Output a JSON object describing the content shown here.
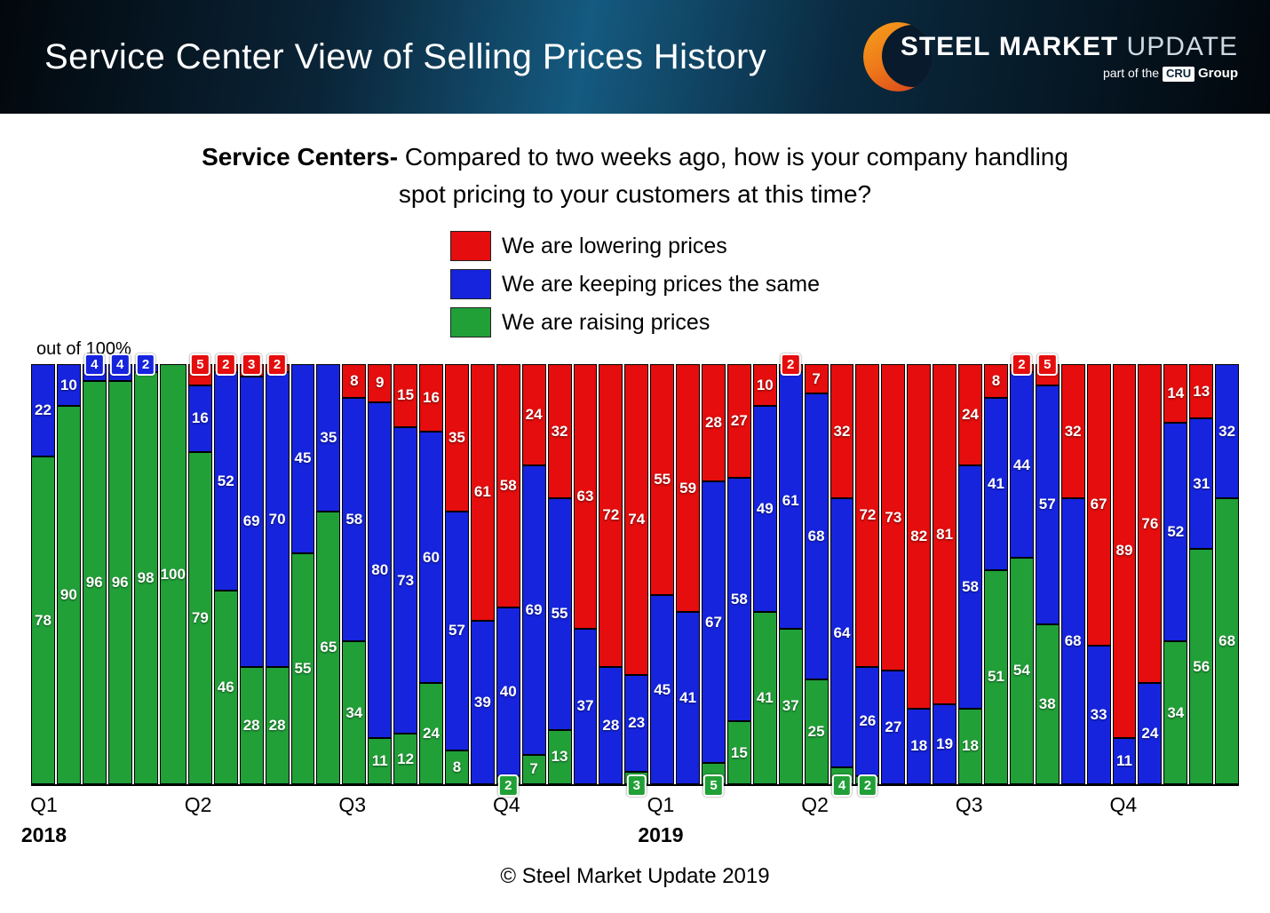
{
  "header": {
    "title": "Service Center View of Selling Prices History",
    "logo": {
      "steel": "STEEL",
      "market": "MARKET",
      "update": "UPDATE",
      "part_of": "part of the",
      "cru": "CRU",
      "group": "Group"
    }
  },
  "question": {
    "bold": "Service Centers-",
    "rest": " Compared to two weeks ago, how is your company handling spot pricing to your customers at this time?"
  },
  "legend": [
    {
      "key": "lowering",
      "label": "We are lowering prices",
      "color": "#e50d0d"
    },
    {
      "key": "keeping",
      "label": "We are keeping prices the same",
      "color": "#1624de"
    },
    {
      "key": "raising",
      "label": "We are raising prices",
      "color": "#21a038"
    }
  ],
  "axis_note": "out of 100%",
  "footer": "© Steel Market Update 2019",
  "chart_data": {
    "type": "bar",
    "stacked": true,
    "title": "Service Centers- Compared to two weeks ago, how is your company handling spot pricing to your customers at this time?",
    "unit": "percent of respondents, out of 100%",
    "total_per_bar": 100,
    "series_names": {
      "lowering": "We are lowering prices",
      "keeping": "We are keeping prices the same",
      "raising": "We are raising prices"
    },
    "colors": {
      "lowering": "#e50d0d",
      "keeping": "#1624de",
      "raising": "#21a038"
    },
    "label_min_inside": 6,
    "bars": [
      {
        "lowering": 0,
        "keeping": 22,
        "raising": 78
      },
      {
        "lowering": 0,
        "keeping": 10,
        "raising": 90
      },
      {
        "lowering": 0,
        "keeping": 4,
        "raising": 96
      },
      {
        "lowering": 0,
        "keeping": 4,
        "raising": 96
      },
      {
        "lowering": 0,
        "keeping": 2,
        "raising": 98
      },
      {
        "lowering": 0,
        "keeping": 0,
        "raising": 100
      },
      {
        "lowering": 5,
        "keeping": 16,
        "raising": 79
      },
      {
        "lowering": 2,
        "keeping": 52,
        "raising": 46
      },
      {
        "lowering": 3,
        "keeping": 69,
        "raising": 28
      },
      {
        "lowering": 2,
        "keeping": 70,
        "raising": 28
      },
      {
        "lowering": 0,
        "keeping": 45,
        "raising": 55
      },
      {
        "lowering": 0,
        "keeping": 35,
        "raising": 65
      },
      {
        "lowering": 8,
        "keeping": 58,
        "raising": 34
      },
      {
        "lowering": 9,
        "keeping": 80,
        "raising": 11
      },
      {
        "lowering": 15,
        "keeping": 73,
        "raising": 12
      },
      {
        "lowering": 16,
        "keeping": 60,
        "raising": 24
      },
      {
        "lowering": 35,
        "keeping": 57,
        "raising": 8
      },
      {
        "lowering": 61,
        "keeping": 39,
        "raising": 0
      },
      {
        "lowering": 58,
        "keeping": 40,
        "raising": 2
      },
      {
        "lowering": 24,
        "keeping": 69,
        "raising": 7
      },
      {
        "lowering": 32,
        "keeping": 55,
        "raising": 13
      },
      {
        "lowering": 63,
        "keeping": 37,
        "raising": 0
      },
      {
        "lowering": 72,
        "keeping": 28,
        "raising": 0
      },
      {
        "lowering": 74,
        "keeping": 23,
        "raising": 3
      },
      {
        "lowering": 55,
        "keeping": 45,
        "raising": 0
      },
      {
        "lowering": 59,
        "keeping": 41,
        "raising": 0
      },
      {
        "lowering": 28,
        "keeping": 67,
        "raising": 5
      },
      {
        "lowering": 27,
        "keeping": 58,
        "raising": 15
      },
      {
        "lowering": 10,
        "keeping": 49,
        "raising": 41
      },
      {
        "lowering": 2,
        "keeping": 61,
        "raising": 37
      },
      {
        "lowering": 7,
        "keeping": 68,
        "raising": 25
      },
      {
        "lowering": 32,
        "keeping": 64,
        "raising": 4
      },
      {
        "lowering": 72,
        "keeping": 26,
        "raising": 2
      },
      {
        "lowering": 73,
        "keeping": 27,
        "raising": 0
      },
      {
        "lowering": 82,
        "keeping": 18,
        "raising": 0
      },
      {
        "lowering": 81,
        "keeping": 19,
        "raising": 0
      },
      {
        "lowering": 24,
        "keeping": 58,
        "raising": 18
      },
      {
        "lowering": 8,
        "keeping": 41,
        "raising": 51
      },
      {
        "lowering": 2,
        "keeping": 44,
        "raising": 54
      },
      {
        "lowering": 5,
        "keeping": 57,
        "raising": 38
      },
      {
        "lowering": 32,
        "keeping": 68,
        "raising": 0
      },
      {
        "lowering": 67,
        "keeping": 33,
        "raising": 0
      },
      {
        "lowering": 89,
        "keeping": 11,
        "raising": 0
      },
      {
        "lowering": 76,
        "keeping": 24,
        "raising": 0
      },
      {
        "lowering": 14,
        "keeping": 52,
        "raising": 34
      },
      {
        "lowering": 13,
        "keeping": 31,
        "raising": 56
      },
      {
        "lowering": 0,
        "keeping": 32,
        "raising": 68
      }
    ],
    "x_axis": {
      "quarters": [
        {
          "label": "Q1",
          "bar": 0
        },
        {
          "label": "Q2",
          "bar": 6
        },
        {
          "label": "Q3",
          "bar": 12
        },
        {
          "label": "Q4",
          "bar": 18
        },
        {
          "label": "Q1",
          "bar": 24
        },
        {
          "label": "Q2",
          "bar": 30
        },
        {
          "label": "Q3",
          "bar": 36
        },
        {
          "label": "Q4",
          "bar": 42
        }
      ],
      "years": [
        {
          "label": "2018",
          "bar": 0
        },
        {
          "label": "2019",
          "bar": 24
        }
      ]
    }
  }
}
